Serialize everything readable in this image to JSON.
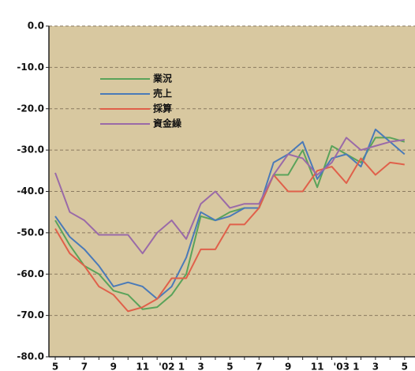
{
  "chart_data": {
    "type": "line",
    "categories": [
      "5",
      null,
      "7",
      null,
      "9",
      null,
      "11",
      null,
      "'02 1",
      null,
      "3",
      null,
      "5",
      null,
      "7",
      null,
      "9",
      null,
      "11",
      null,
      "'03 1",
      null,
      "3",
      null,
      "5"
    ],
    "series": [
      {
        "name": "業況",
        "color": "#5aa35a",
        "values": [
          -47,
          -53,
          -58,
          -60,
          -64,
          -65,
          -68.5,
          -68,
          -65,
          -60,
          -46,
          -47,
          -45,
          -44,
          -44,
          -36,
          -36,
          -30,
          -39,
          -29,
          -31,
          -33,
          -27,
          -27,
          -28
        ]
      },
      {
        "name": "売上",
        "color": "#4a7ab8",
        "values": [
          -46,
          -51,
          -54,
          -58,
          -63,
          -62,
          -63,
          -66,
          -63,
          -56,
          -45,
          -47,
          -46,
          -44,
          -44,
          -33,
          -31,
          -28,
          -37,
          -32,
          -31,
          -34,
          -25,
          -28,
          -31
        ]
      },
      {
        "name": "採算",
        "color": "#e0604a",
        "values": [
          -49,
          -55,
          -58,
          -63,
          -65,
          -69,
          -68,
          -66,
          -61,
          -61,
          -54,
          -54,
          -48,
          -48,
          -44,
          -36,
          -40,
          -40,
          -35,
          -34,
          -38,
          -32,
          -36,
          -33,
          -33.5
        ]
      },
      {
        "name": "資金繰",
        "color": "#9a6aa8",
        "values": [
          -35.5,
          -45,
          -47,
          -50.5,
          -50.5,
          -50.5,
          -55,
          -50,
          -47,
          -51.5,
          -43,
          -40,
          -44,
          -43,
          -43,
          -36,
          -31,
          -32,
          -36,
          -33,
          -27,
          -30,
          -29,
          -28,
          -27.5
        ]
      }
    ],
    "ylim": [
      -80,
      0
    ],
    "yticks": [
      {
        "value": 0,
        "label": "0.0"
      },
      {
        "value": -10,
        "label": "-10.0"
      },
      {
        "value": -20,
        "label": "-20.0"
      },
      {
        "value": -30,
        "label": "-30.0"
      },
      {
        "value": -40,
        "label": "-40.0"
      },
      {
        "value": -50,
        "label": "-50.0"
      },
      {
        "value": -60,
        "label": "-60.0"
      },
      {
        "value": -70,
        "label": "-70.0"
      },
      {
        "value": -80,
        "label": "-80.0"
      }
    ],
    "grid": true
  }
}
